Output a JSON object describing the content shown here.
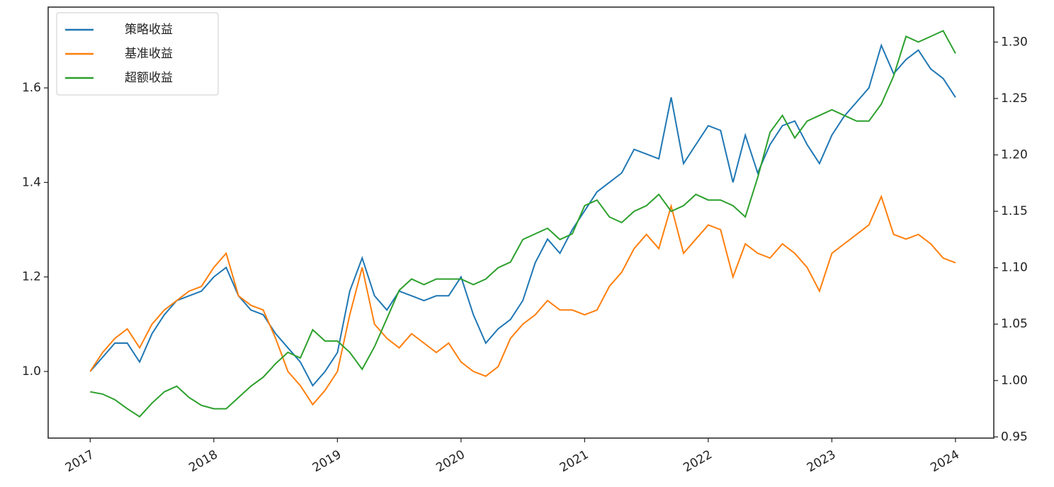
{
  "chart_data": {
    "type": "line",
    "x": [
      2017.0,
      2017.1,
      2017.2,
      2017.3,
      2017.4,
      2017.5,
      2017.6,
      2017.7,
      2017.8,
      2017.9,
      2018.0,
      2018.1,
      2018.2,
      2018.3,
      2018.4,
      2018.5,
      2018.6,
      2018.7,
      2018.8,
      2018.9,
      2019.0,
      2019.1,
      2019.2,
      2019.3,
      2019.4,
      2019.5,
      2019.6,
      2019.7,
      2019.8,
      2019.9,
      2020.0,
      2020.1,
      2020.2,
      2020.3,
      2020.4,
      2020.5,
      2020.6,
      2020.7,
      2020.8,
      2020.9,
      2021.0,
      2021.1,
      2021.2,
      2021.3,
      2021.4,
      2021.5,
      2021.6,
      2021.7,
      2021.8,
      2021.9,
      2022.0,
      2022.1,
      2022.2,
      2022.3,
      2022.4,
      2022.5,
      2022.6,
      2022.7,
      2022.8,
      2022.9,
      2023.0,
      2023.1,
      2023.2,
      2023.3,
      2023.4,
      2023.5,
      2023.6,
      2023.7,
      2023.8,
      2023.9,
      2024.0
    ],
    "series": [
      {
        "name": "策略收益",
        "color": "#1f77b4",
        "values": [
          1.0,
          1.03,
          1.06,
          1.06,
          1.02,
          1.08,
          1.12,
          1.15,
          1.16,
          1.17,
          1.2,
          1.22,
          1.16,
          1.13,
          1.12,
          1.08,
          1.05,
          1.02,
          0.97,
          1.0,
          1.04,
          1.17,
          1.24,
          1.16,
          1.13,
          1.17,
          1.16,
          1.15,
          1.16,
          1.16,
          1.2,
          1.12,
          1.06,
          1.09,
          1.11,
          1.15,
          1.23,
          1.28,
          1.25,
          1.3,
          1.34,
          1.38,
          1.4,
          1.42,
          1.47,
          1.46,
          1.45,
          1.58,
          1.44,
          1.48,
          1.52,
          1.51,
          1.4,
          1.5,
          1.42,
          1.48,
          1.52,
          1.53,
          1.48,
          1.44,
          1.5,
          1.54,
          1.57,
          1.6,
          1.69,
          1.63,
          1.66,
          1.68,
          1.64,
          1.62,
          1.58
        ]
      },
      {
        "name": "基准收益",
        "color": "#ff7f0e",
        "values": [
          1.0,
          1.04,
          1.07,
          1.09,
          1.05,
          1.1,
          1.13,
          1.15,
          1.17,
          1.18,
          1.22,
          1.25,
          1.16,
          1.14,
          1.13,
          1.07,
          1.0,
          0.97,
          0.93,
          0.96,
          1.0,
          1.12,
          1.22,
          1.1,
          1.07,
          1.05,
          1.08,
          1.06,
          1.04,
          1.06,
          1.02,
          1.0,
          0.99,
          1.01,
          1.07,
          1.1,
          1.12,
          1.15,
          1.13,
          1.13,
          1.12,
          1.13,
          1.18,
          1.21,
          1.26,
          1.29,
          1.26,
          1.35,
          1.25,
          1.28,
          1.31,
          1.3,
          1.2,
          1.27,
          1.25,
          1.24,
          1.27,
          1.25,
          1.22,
          1.17,
          1.25,
          1.27,
          1.29,
          1.31,
          1.37,
          1.29,
          1.28,
          1.29,
          1.27,
          1.24,
          1.23
        ]
      },
      {
        "name": "超额收益",
        "color": "#2ca02c",
        "axis": "y2",
        "values": [
          0.99,
          0.988,
          0.983,
          0.975,
          0.968,
          0.98,
          0.99,
          0.995,
          0.985,
          0.978,
          0.975,
          0.975,
          0.985,
          0.995,
          1.003,
          1.015,
          1.025,
          1.02,
          1.045,
          1.035,
          1.035,
          1.025,
          1.01,
          1.03,
          1.055,
          1.08,
          1.09,
          1.085,
          1.09,
          1.09,
          1.09,
          1.085,
          1.09,
          1.1,
          1.105,
          1.125,
          1.13,
          1.135,
          1.125,
          1.13,
          1.155,
          1.16,
          1.145,
          1.14,
          1.15,
          1.155,
          1.165,
          1.15,
          1.155,
          1.165,
          1.16,
          1.16,
          1.155,
          1.145,
          1.18,
          1.22,
          1.235,
          1.215,
          1.23,
          1.235,
          1.24,
          1.235,
          1.23,
          1.23,
          1.245,
          1.27,
          1.305,
          1.3,
          1.305,
          1.31,
          1.29
        ]
      }
    ],
    "xlim": [
      2016.66,
      2024.31
    ],
    "xticks": [
      2017,
      2018,
      2019,
      2020,
      2021,
      2022,
      2023,
      2024
    ],
    "ylim": [
      0.859,
      1.771
    ],
    "yticks": [
      {
        "value": 1.0,
        "label": "1.0"
      },
      1.2,
      1.4,
      1.6
    ],
    "y2lim": [
      0.949,
      1.331
    ],
    "y2ticks": [
      0.95,
      {
        "value": 1.0,
        "label": "1.00"
      },
      1.05,
      {
        "value": 1.1,
        "label": "1.10"
      },
      1.15,
      {
        "value": 1.2,
        "label": "1.20"
      },
      1.25,
      {
        "value": 1.3,
        "label": "1.30"
      }
    ],
    "legend": "upper left"
  }
}
